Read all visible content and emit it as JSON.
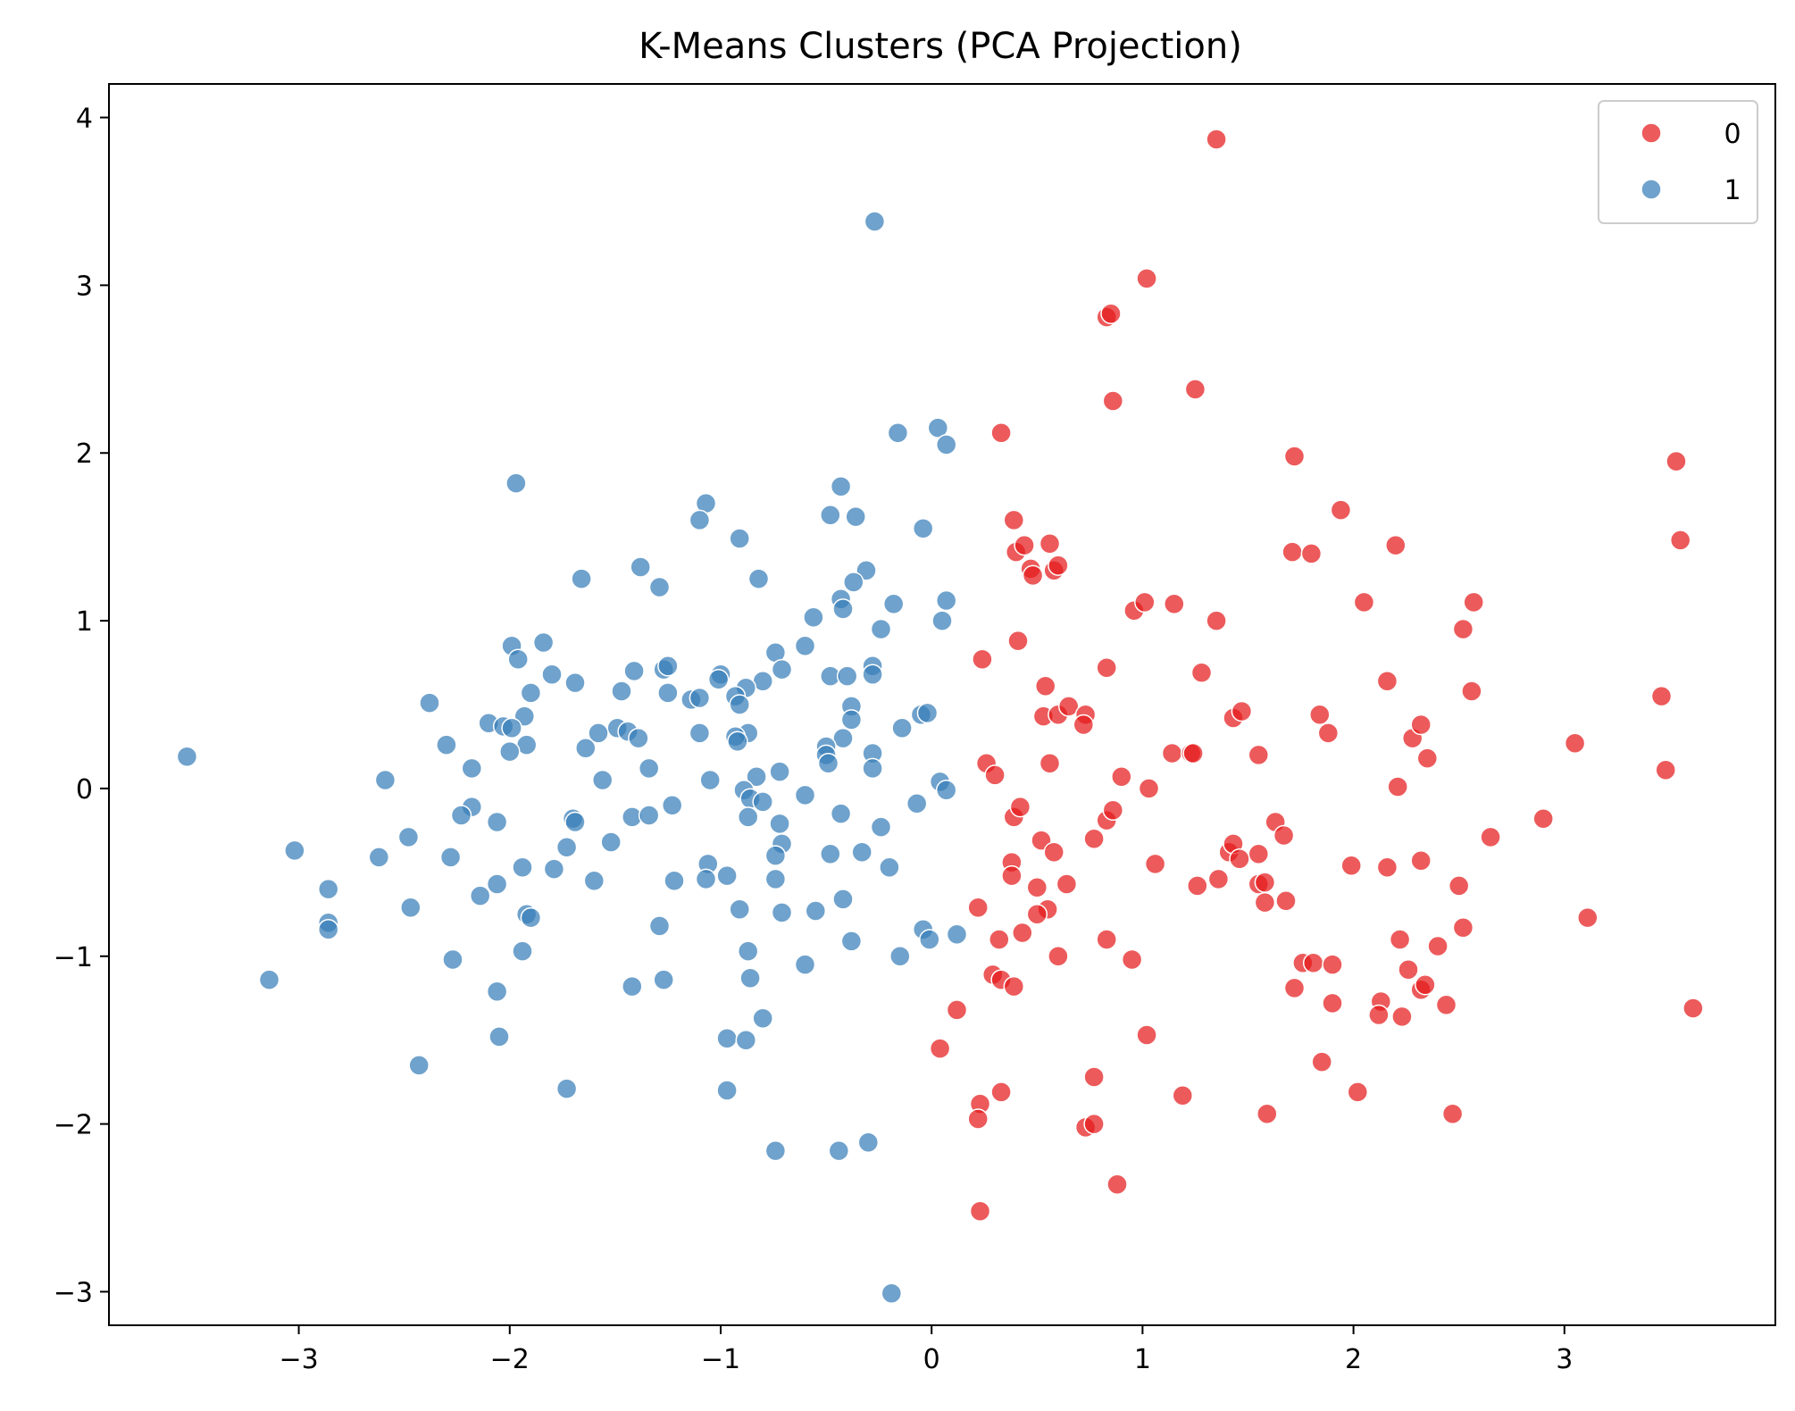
{
  "chart_data": {
    "type": "scatter",
    "title": "K-Means Clusters (PCA Projection)",
    "xlabel": "",
    "ylabel": "",
    "xlim": [
      -3.9,
      4.0
    ],
    "ylim": [
      -3.2,
      4.2
    ],
    "xticks": [
      -3,
      -2,
      -1,
      0,
      1,
      2,
      3
    ],
    "yticks": [
      -3,
      -2,
      -1,
      0,
      1,
      2,
      3,
      4
    ],
    "grid": false,
    "legend": {
      "position": "top-right"
    },
    "series": [
      {
        "name": "0",
        "color": "#e41a1c",
        "points": [
          [
            1.35,
            3.87
          ],
          [
            1.02,
            3.04
          ],
          [
            0.83,
            2.81
          ],
          [
            0.85,
            2.83
          ],
          [
            0.86,
            2.31
          ],
          [
            1.25,
            2.38
          ],
          [
            0.33,
            2.12
          ],
          [
            1.72,
            1.98
          ],
          [
            3.53,
            1.95
          ],
          [
            1.94,
            1.66
          ],
          [
            3.55,
            1.48
          ],
          [
            0.39,
            1.6
          ],
          [
            0.4,
            1.41
          ],
          [
            0.44,
            1.45
          ],
          [
            0.56,
            1.46
          ],
          [
            0.47,
            1.31
          ],
          [
            0.48,
            1.27
          ],
          [
            0.58,
            1.3
          ],
          [
            0.6,
            1.33
          ],
          [
            1.71,
            1.41
          ],
          [
            1.8,
            1.4
          ],
          [
            2.2,
            1.45
          ],
          [
            0.96,
            1.06
          ],
          [
            1.01,
            1.11
          ],
          [
            1.15,
            1.1
          ],
          [
            1.35,
            1.0
          ],
          [
            2.05,
            1.11
          ],
          [
            2.57,
            1.11
          ],
          [
            2.52,
            0.95
          ],
          [
            0.41,
            0.88
          ],
          [
            0.24,
            0.77
          ],
          [
            0.83,
            0.72
          ],
          [
            1.28,
            0.69
          ],
          [
            2.16,
            0.64
          ],
          [
            2.56,
            0.58
          ],
          [
            3.46,
            0.55
          ],
          [
            0.54,
            0.61
          ],
          [
            0.53,
            0.43
          ],
          [
            0.6,
            0.44
          ],
          [
            0.65,
            0.49
          ],
          [
            0.73,
            0.44
          ],
          [
            0.72,
            0.38
          ],
          [
            1.43,
            0.42
          ],
          [
            1.47,
            0.46
          ],
          [
            1.84,
            0.44
          ],
          [
            1.88,
            0.33
          ],
          [
            2.28,
            0.3
          ],
          [
            2.32,
            0.38
          ],
          [
            3.05,
            0.27
          ],
          [
            0.26,
            0.15
          ],
          [
            0.3,
            0.08
          ],
          [
            0.56,
            0.15
          ],
          [
            1.14,
            0.21
          ],
          [
            1.23,
            0.21
          ],
          [
            1.24,
            0.21
          ],
          [
            1.55,
            0.2
          ],
          [
            2.35,
            0.18
          ],
          [
            3.48,
            0.11
          ],
          [
            0.9,
            0.07
          ],
          [
            1.03,
            0.0
          ],
          [
            2.21,
            0.01
          ],
          [
            0.39,
            -0.17
          ],
          [
            0.42,
            -0.11
          ],
          [
            0.83,
            -0.19
          ],
          [
            0.86,
            -0.13
          ],
          [
            1.63,
            -0.2
          ],
          [
            1.67,
            -0.28
          ],
          [
            2.65,
            -0.29
          ],
          [
            2.9,
            -0.18
          ],
          [
            0.52,
            -0.31
          ],
          [
            0.58,
            -0.38
          ],
          [
            0.77,
            -0.3
          ],
          [
            1.41,
            -0.38
          ],
          [
            1.43,
            -0.33
          ],
          [
            1.46,
            -0.42
          ],
          [
            1.55,
            -0.39
          ],
          [
            0.38,
            -0.44
          ],
          [
            0.38,
            -0.52
          ],
          [
            1.06,
            -0.45
          ],
          [
            1.36,
            -0.54
          ],
          [
            1.99,
            -0.46
          ],
          [
            2.16,
            -0.47
          ],
          [
            2.32,
            -0.43
          ],
          [
            0.5,
            -0.59
          ],
          [
            0.64,
            -0.57
          ],
          [
            1.26,
            -0.58
          ],
          [
            1.55,
            -0.57
          ],
          [
            1.58,
            -0.56
          ],
          [
            1.58,
            -0.68
          ],
          [
            1.68,
            -0.67
          ],
          [
            2.5,
            -0.58
          ],
          [
            0.22,
            -0.71
          ],
          [
            0.55,
            -0.72
          ],
          [
            0.5,
            -0.75
          ],
          [
            0.43,
            -0.86
          ],
          [
            0.32,
            -0.9
          ],
          [
            0.83,
            -0.9
          ],
          [
            2.52,
            -0.83
          ],
          [
            3.11,
            -0.77
          ],
          [
            2.22,
            -0.9
          ],
          [
            2.4,
            -0.94
          ],
          [
            0.6,
            -1.0
          ],
          [
            0.95,
            -1.02
          ],
          [
            1.76,
            -1.04
          ],
          [
            1.81,
            -1.04
          ],
          [
            1.9,
            -1.05
          ],
          [
            2.26,
            -1.08
          ],
          [
            0.29,
            -1.11
          ],
          [
            0.33,
            -1.14
          ],
          [
            0.39,
            -1.18
          ],
          [
            1.72,
            -1.19
          ],
          [
            2.32,
            -1.2
          ],
          [
            2.34,
            -1.17
          ],
          [
            1.9,
            -1.28
          ],
          [
            2.13,
            -1.27
          ],
          [
            2.12,
            -1.35
          ],
          [
            2.23,
            -1.36
          ],
          [
            2.44,
            -1.29
          ],
          [
            3.61,
            -1.31
          ],
          [
            0.12,
            -1.32
          ],
          [
            1.02,
            -1.47
          ],
          [
            0.04,
            -1.55
          ],
          [
            1.85,
            -1.63
          ],
          [
            0.77,
            -1.72
          ],
          [
            0.33,
            -1.81
          ],
          [
            1.19,
            -1.83
          ],
          [
            2.02,
            -1.81
          ],
          [
            0.23,
            -1.88
          ],
          [
            1.59,
            -1.94
          ],
          [
            2.47,
            -1.94
          ],
          [
            0.22,
            -1.97
          ],
          [
            0.73,
            -2.02
          ],
          [
            0.77,
            -2.0
          ],
          [
            0.88,
            -2.36
          ],
          [
            0.23,
            -2.52
          ]
        ]
      },
      {
        "name": "1",
        "color": "#377eb8",
        "points": [
          [
            -0.27,
            3.38
          ],
          [
            0.03,
            2.15
          ],
          [
            -0.16,
            2.12
          ],
          [
            0.07,
            2.05
          ],
          [
            -1.97,
            1.82
          ],
          [
            -0.43,
            1.8
          ],
          [
            -1.07,
            1.7
          ],
          [
            -0.48,
            1.63
          ],
          [
            -0.36,
            1.62
          ],
          [
            -1.1,
            1.6
          ],
          [
            -0.04,
            1.55
          ],
          [
            -0.91,
            1.49
          ],
          [
            -1.38,
            1.32
          ],
          [
            -0.31,
            1.3
          ],
          [
            -1.66,
            1.25
          ],
          [
            -0.82,
            1.25
          ],
          [
            -0.37,
            1.23
          ],
          [
            -1.29,
            1.2
          ],
          [
            -0.43,
            1.13
          ],
          [
            -0.42,
            1.07
          ],
          [
            -0.18,
            1.1
          ],
          [
            0.07,
            1.12
          ],
          [
            0.05,
            1.0
          ],
          [
            -0.56,
            1.02
          ],
          [
            -0.24,
            0.95
          ],
          [
            -1.99,
            0.85
          ],
          [
            -1.84,
            0.87
          ],
          [
            -0.6,
            0.85
          ],
          [
            -0.74,
            0.81
          ],
          [
            -1.96,
            0.77
          ],
          [
            -1.27,
            0.71
          ],
          [
            -1.25,
            0.73
          ],
          [
            -1.41,
            0.7
          ],
          [
            -0.28,
            0.73
          ],
          [
            -0.28,
            0.68
          ],
          [
            -0.71,
            0.71
          ],
          [
            -1.8,
            0.68
          ],
          [
            -0.48,
            0.67
          ],
          [
            -0.4,
            0.67
          ],
          [
            -1.0,
            0.68
          ],
          [
            -1.01,
            0.65
          ],
          [
            -0.8,
            0.64
          ],
          [
            -1.69,
            0.63
          ],
          [
            -0.88,
            0.6
          ],
          [
            -1.25,
            0.57
          ],
          [
            -1.9,
            0.57
          ],
          [
            -2.38,
            0.51
          ],
          [
            -1.14,
            0.53
          ],
          [
            -1.1,
            0.54
          ],
          [
            -0.93,
            0.55
          ],
          [
            -0.91,
            0.5
          ],
          [
            -0.38,
            0.49
          ],
          [
            -1.93,
            0.43
          ],
          [
            -1.47,
            0.58
          ],
          [
            -0.38,
            0.41
          ],
          [
            -0.05,
            0.44
          ],
          [
            -0.02,
            0.45
          ],
          [
            -2.1,
            0.39
          ],
          [
            -2.03,
            0.37
          ],
          [
            -1.99,
            0.36
          ],
          [
            -1.49,
            0.36
          ],
          [
            -1.44,
            0.34
          ],
          [
            -1.58,
            0.33
          ],
          [
            -1.1,
            0.33
          ],
          [
            -0.87,
            0.33
          ],
          [
            -0.93,
            0.31
          ],
          [
            -0.92,
            0.28
          ],
          [
            -0.42,
            0.3
          ],
          [
            -0.14,
            0.36
          ],
          [
            -2.3,
            0.26
          ],
          [
            -1.92,
            0.26
          ],
          [
            -1.39,
            0.3
          ],
          [
            -1.64,
            0.24
          ],
          [
            -2.0,
            0.22
          ],
          [
            -0.5,
            0.25
          ],
          [
            -0.28,
            0.21
          ],
          [
            -0.5,
            0.2
          ],
          [
            -0.49,
            0.15
          ],
          [
            -2.18,
            0.12
          ],
          [
            -1.34,
            0.12
          ],
          [
            -0.72,
            0.1
          ],
          [
            -0.28,
            0.12
          ],
          [
            -1.56,
            0.05
          ],
          [
            -1.05,
            0.05
          ],
          [
            -0.83,
            0.07
          ],
          [
            -0.89,
            -0.01
          ],
          [
            0.04,
            0.04
          ],
          [
            0.07,
            -0.01
          ],
          [
            -2.59,
            0.05
          ],
          [
            -3.53,
            0.19
          ],
          [
            -0.6,
            -0.04
          ],
          [
            -0.86,
            -0.06
          ],
          [
            -0.8,
            -0.08
          ],
          [
            -0.07,
            -0.09
          ],
          [
            -1.23,
            -0.1
          ],
          [
            -2.18,
            -0.11
          ],
          [
            -1.7,
            -0.18
          ],
          [
            -1.69,
            -0.2
          ],
          [
            -2.23,
            -0.16
          ],
          [
            -1.42,
            -0.17
          ],
          [
            -1.34,
            -0.16
          ],
          [
            -0.87,
            -0.17
          ],
          [
            -0.72,
            -0.21
          ],
          [
            -0.43,
            -0.15
          ],
          [
            -2.06,
            -0.2
          ],
          [
            -0.24,
            -0.23
          ],
          [
            -2.48,
            -0.29
          ],
          [
            -1.52,
            -0.32
          ],
          [
            -0.71,
            -0.33
          ],
          [
            -1.73,
            -0.35
          ],
          [
            -3.02,
            -0.37
          ],
          [
            -0.74,
            -0.4
          ],
          [
            -2.62,
            -0.41
          ],
          [
            -2.28,
            -0.41
          ],
          [
            -1.06,
            -0.45
          ],
          [
            -0.48,
            -0.39
          ],
          [
            -0.33,
            -0.38
          ],
          [
            -1.94,
            -0.47
          ],
          [
            -1.79,
            -0.48
          ],
          [
            -0.2,
            -0.47
          ],
          [
            -1.07,
            -0.54
          ],
          [
            -0.97,
            -0.52
          ],
          [
            -1.22,
            -0.55
          ],
          [
            -1.6,
            -0.55
          ],
          [
            -0.74,
            -0.54
          ],
          [
            -2.06,
            -0.57
          ],
          [
            -2.86,
            -0.6
          ],
          [
            -2.14,
            -0.64
          ],
          [
            -0.42,
            -0.66
          ],
          [
            -2.47,
            -0.71
          ],
          [
            -0.91,
            -0.72
          ],
          [
            -0.71,
            -0.74
          ],
          [
            -0.55,
            -0.73
          ],
          [
            -1.92,
            -0.75
          ],
          [
            -1.9,
            -0.77
          ],
          [
            -2.86,
            -0.8
          ],
          [
            -2.86,
            -0.84
          ],
          [
            -1.29,
            -0.82
          ],
          [
            -0.04,
            -0.84
          ],
          [
            -0.01,
            -0.9
          ],
          [
            0.12,
            -0.87
          ],
          [
            -0.38,
            -0.91
          ],
          [
            -1.94,
            -0.97
          ],
          [
            -0.87,
            -0.97
          ],
          [
            -2.27,
            -1.02
          ],
          [
            -0.15,
            -1.0
          ],
          [
            -0.6,
            -1.05
          ],
          [
            -3.14,
            -1.14
          ],
          [
            -1.42,
            -1.18
          ],
          [
            -1.27,
            -1.14
          ],
          [
            -0.86,
            -1.13
          ],
          [
            -2.06,
            -1.21
          ],
          [
            -0.8,
            -1.37
          ],
          [
            -2.05,
            -1.48
          ],
          [
            -0.97,
            -1.49
          ],
          [
            -0.88,
            -1.5
          ],
          [
            -2.43,
            -1.65
          ],
          [
            -1.73,
            -1.79
          ],
          [
            -0.97,
            -1.8
          ],
          [
            -0.3,
            -2.11
          ],
          [
            -0.74,
            -2.16
          ],
          [
            -0.44,
            -2.16
          ],
          [
            -0.19,
            -3.01
          ]
        ]
      }
    ]
  }
}
